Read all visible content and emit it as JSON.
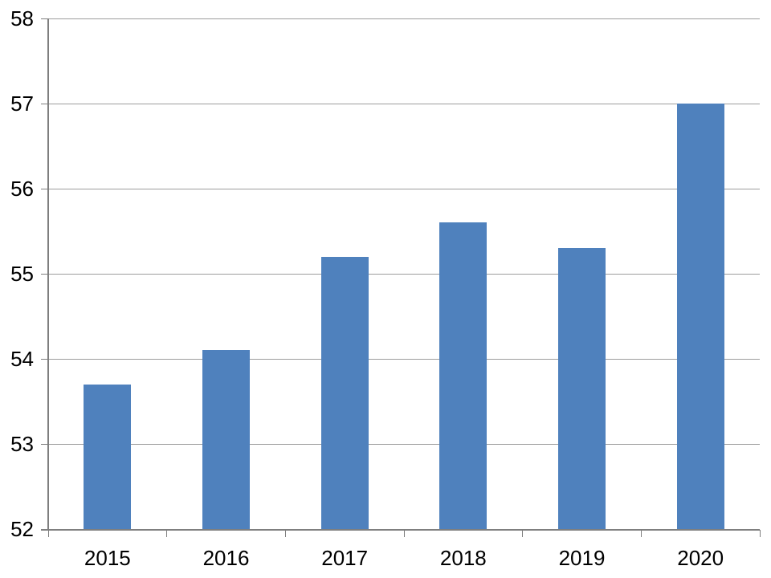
{
  "chart_data": {
    "type": "bar",
    "title": "",
    "xlabel": "",
    "ylabel": "",
    "categories": [
      "2015",
      "2016",
      "2017",
      "2018",
      "2019",
      "2020"
    ],
    "values": [
      53.7,
      54.1,
      55.2,
      55.6,
      55.3,
      57
    ],
    "ylim": [
      52,
      58
    ],
    "ytick_interval": 1,
    "y_tick_labels": [
      "52",
      "53",
      "54",
      "55",
      "56",
      "57",
      "58"
    ],
    "grid": true,
    "legend": "none",
    "colors": {
      "bar": "#4F81BD",
      "gridline": "#9D9D9D",
      "axis": "#7F7F7F",
      "text": "#000000",
      "background": "#FFFFFF"
    }
  }
}
